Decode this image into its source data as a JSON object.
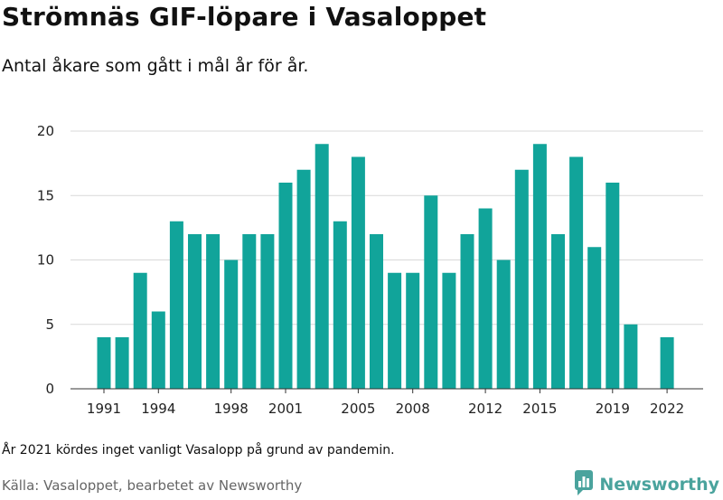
{
  "header": {
    "title": "Strömnäs GIF-löpare i Vasaloppet",
    "subtitle": "Antal åkare som gått i mål år för år."
  },
  "footer": {
    "note": "År 2021 kördes inget vanligt Vasalopp på grund av pandemin.",
    "source": "Källa: Vasaloppet, bearbetet av Newsworthy",
    "brand": "Newsworthy",
    "brand_icon": "newsworthy-logo-icon"
  },
  "colors": {
    "bar": "#11a49a",
    "grid": "#d9d9d9",
    "brand": "#4aa39d"
  },
  "chart_data": {
    "type": "bar",
    "title": "Strömnäs GIF-löpare i Vasaloppet",
    "subtitle": "Antal åkare som gått i mål år för år.",
    "xlabel": "",
    "ylabel": "",
    "categories": [
      1991,
      1992,
      1993,
      1994,
      1995,
      1996,
      1997,
      1998,
      1999,
      2000,
      2001,
      2002,
      2003,
      2004,
      2005,
      2006,
      2007,
      2008,
      2009,
      2010,
      2011,
      2012,
      2013,
      2014,
      2015,
      2016,
      2017,
      2018,
      2019,
      2020,
      2022
    ],
    "values": [
      4,
      4,
      9,
      6,
      13,
      12,
      12,
      10,
      12,
      12,
      16,
      17,
      19,
      13,
      18,
      12,
      9,
      9,
      15,
      9,
      12,
      14,
      10,
      17,
      19,
      12,
      18,
      11,
      16,
      5,
      4
    ],
    "x_ticks": [
      "1991",
      "1994",
      "1998",
      "2001",
      "2005",
      "2008",
      "2012",
      "2015",
      "2019",
      "2022"
    ],
    "y_ticks": [
      0,
      5,
      10,
      15,
      20
    ],
    "ylim": [
      0,
      20
    ],
    "grid": true,
    "legend": "none"
  }
}
